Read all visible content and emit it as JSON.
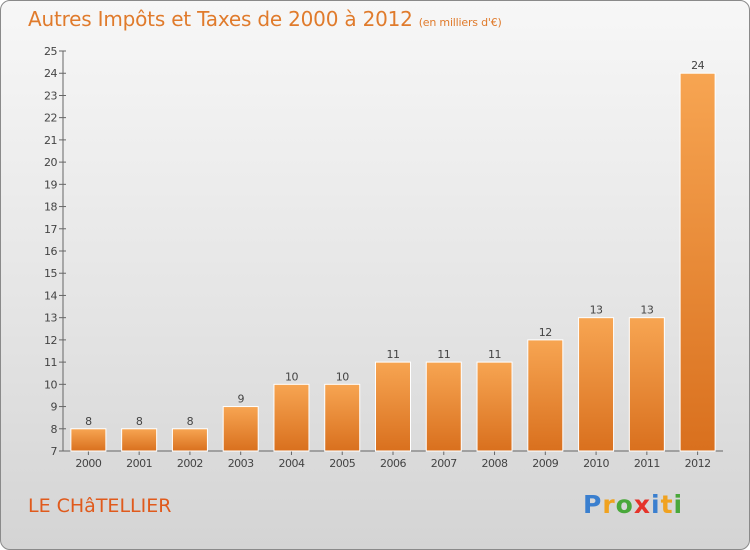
{
  "title": "Autres Impôts et Taxes de 2000 à 2012",
  "title_unit": "(en milliers d'€)",
  "commune": "LE CHâTELLIER",
  "logo": {
    "letters": [
      "P",
      "r",
      "o",
      "x",
      "i",
      "t",
      "i"
    ],
    "colors": [
      "#3a7fcf",
      "#f0a21f",
      "#49a83a",
      "#e5332a",
      "#3a7fcf",
      "#f0a21f",
      "#49a83a"
    ]
  },
  "colors": {
    "bar_light": "#f7a552",
    "bar_dark": "#d9701e",
    "title": "#e07b2c"
  },
  "chart_data": {
    "type": "bar",
    "categories": [
      "2000",
      "2001",
      "2002",
      "2003",
      "2004",
      "2005",
      "2006",
      "2007",
      "2008",
      "2009",
      "2010",
      "2011",
      "2012"
    ],
    "values": [
      8,
      8,
      8,
      9,
      10,
      10,
      11,
      11,
      11,
      12,
      13,
      13,
      24
    ],
    "ylim": [
      7,
      25
    ],
    "yticks": [
      7,
      8,
      9,
      10,
      11,
      12,
      13,
      14,
      15,
      16,
      17,
      18,
      19,
      20,
      21,
      22,
      23,
      24,
      25
    ],
    "grid": false
  }
}
